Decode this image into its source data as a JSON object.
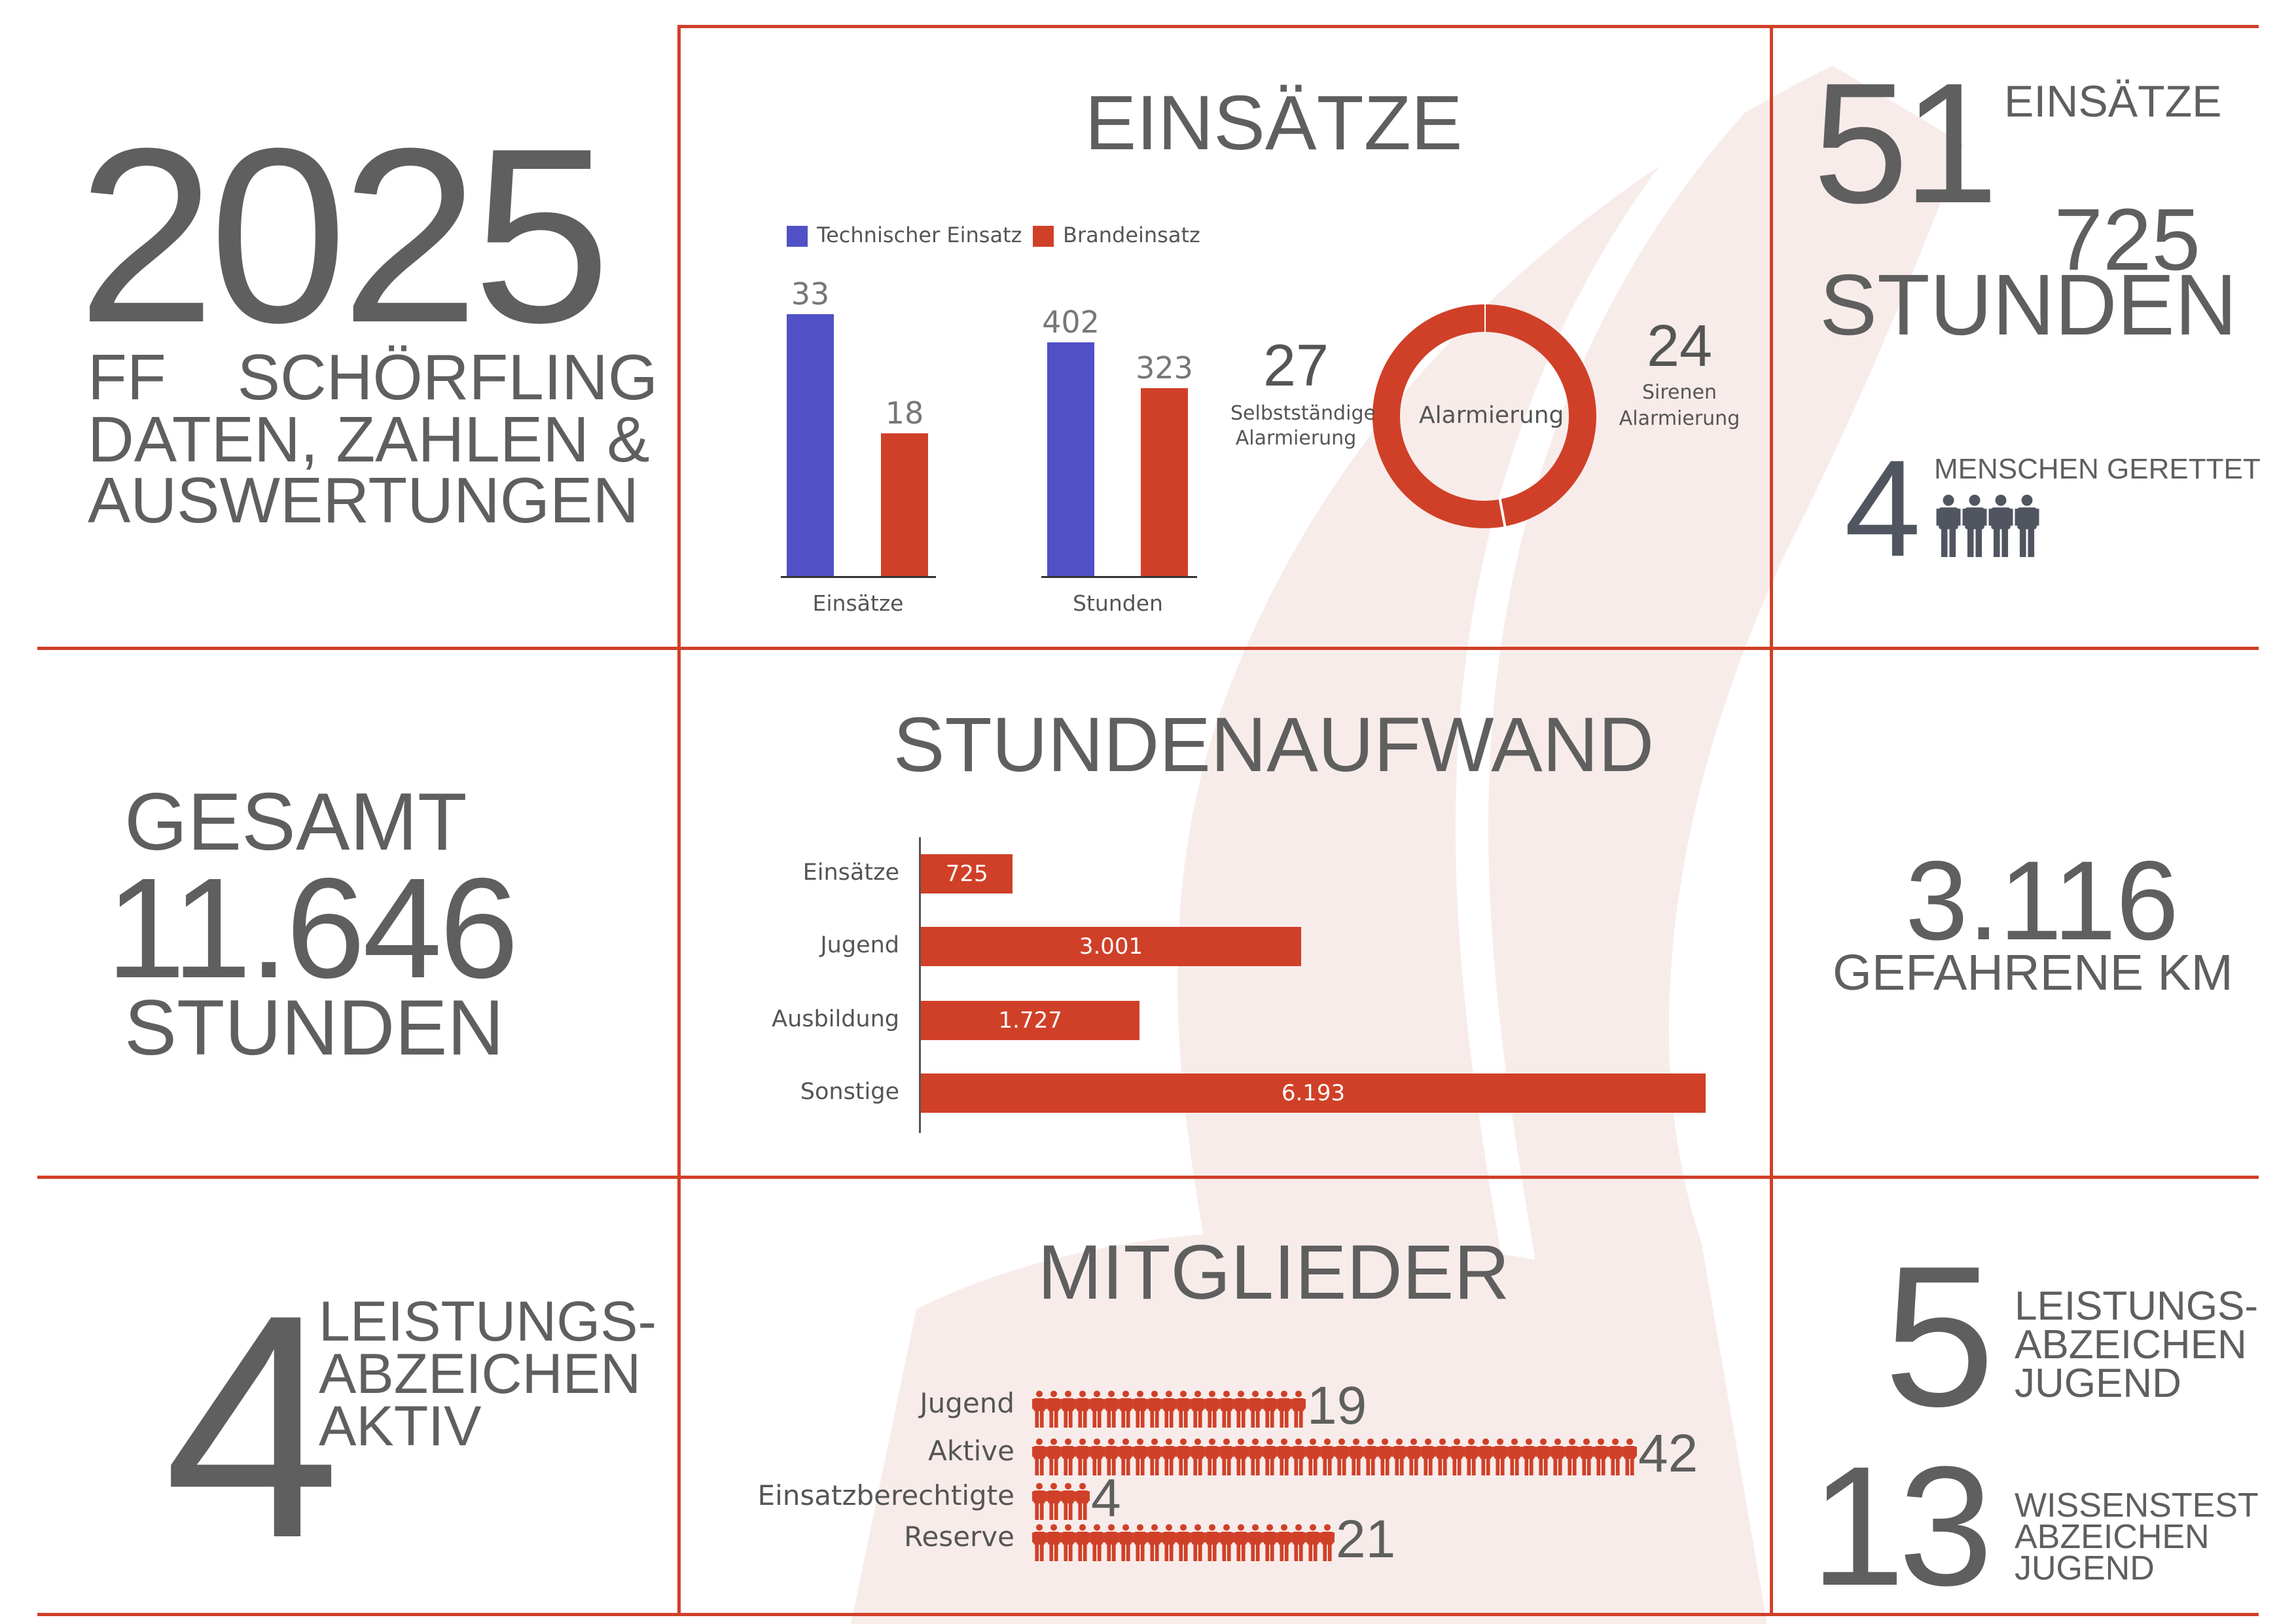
{
  "colors": {
    "accent": "#d04028",
    "blue": "#5051c6",
    "text": "#5f5f5f",
    "watermark": "#f8ecea"
  },
  "header": {
    "year": "2025",
    "org": "FF    SCHÖRFLING",
    "subtitle_line1": "DATEN, ZAHLEN &",
    "subtitle_line2": "AUSWERTUNGEN"
  },
  "einsaetze_chart": {
    "title": "EINSÄTZE",
    "chart_data": {
      "type": "bar",
      "categories": [
        "Einsätze",
        "Stunden"
      ],
      "series": [
        {
          "name": "Technischer Einsatz",
          "values": [
            33,
            402
          ],
          "color": "#5051c6"
        },
        {
          "name": "Brandeinsatz",
          "values": [
            18,
            323
          ],
          "color": "#d04028"
        }
      ]
    }
  },
  "alarmierung": {
    "center_label": "Alarmierung",
    "chart_data": {
      "type": "pie",
      "slices": [
        {
          "label": "Sirenen Alarmierung",
          "label_line1": "Sirenen",
          "label_line2": "Alarmierung",
          "value": 24
        },
        {
          "label": "Selbstständige Alarmierung",
          "label_line1": "Selbstständige",
          "label_line2": "Alarmierung",
          "value": 27
        }
      ]
    }
  },
  "summary": {
    "einsaetze_count": "51",
    "einsaetze_label": "EINSÄTZE",
    "stunden_count": "725",
    "stunden_label": "STUNDEN",
    "rescued_count": "4",
    "rescued_label": "MENSCHEN GERETTET",
    "rescued_icons": 4
  },
  "total": {
    "label_top": "GESAMT",
    "value": "11.646",
    "label_bottom": "STUNDEN"
  },
  "stundenaufwand": {
    "title": "STUNDENAUFWAND",
    "chart_data": {
      "type": "bar",
      "orientation": "horizontal",
      "categories": [
        "Einsätze",
        "Jugend",
        "Ausbildung",
        "Sonstige"
      ],
      "values": [
        725,
        3001,
        1727,
        6193
      ],
      "value_labels": [
        "725",
        "3.001",
        "1.727",
        "6.193"
      ]
    }
  },
  "km": {
    "value": "3.116",
    "label": "GEFAHRENE KM"
  },
  "leistung_aktiv": {
    "value": "4",
    "line1": "LEISTUNGS-",
    "line2": "ABZEICHEN",
    "line3": "AKTIV"
  },
  "mitglieder": {
    "title": "MITGLIEDER",
    "chart_data": {
      "type": "pictogram",
      "categories": [
        "Jugend",
        "Aktive",
        "Einsatzberechtigte",
        "Reserve"
      ],
      "values": [
        19,
        42,
        4,
        21
      ]
    }
  },
  "leistung_jugend": {
    "value": "5",
    "line1": "LEISTUNGS-",
    "line2": "ABZEICHEN",
    "line3": "JUGEND"
  },
  "wissenstest": {
    "value": "13",
    "line1": "WISSENSTEST",
    "line2": "ABZEICHEN",
    "line3": "JUGEND"
  }
}
